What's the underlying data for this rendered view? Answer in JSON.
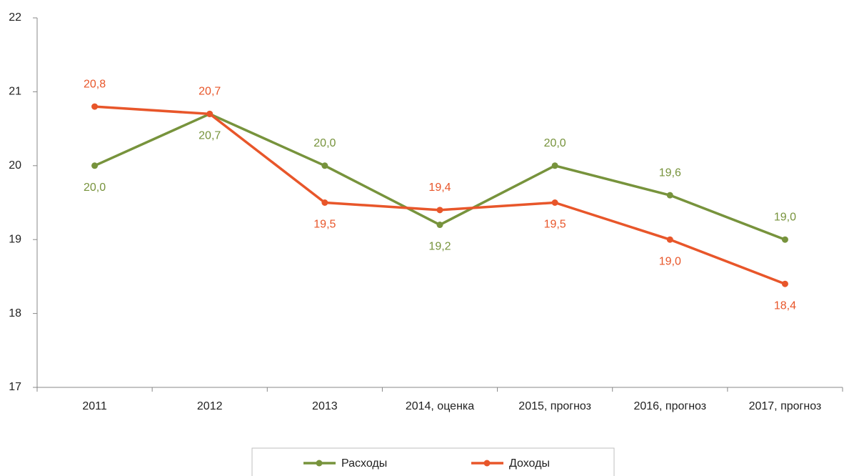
{
  "chart_data": {
    "type": "line",
    "categories": [
      "2011",
      "2012",
      "2013",
      "2014, оценка",
      "2015, прогноз",
      "2016, прогноз",
      "2017, прогноз"
    ],
    "series": [
      {
        "name": "Расходы",
        "color": "#77933c",
        "values": [
          20.0,
          20.7,
          20.0,
          19.2,
          20.0,
          19.6,
          19.0
        ],
        "value_labels": [
          "20,0",
          "20,7",
          "20,0",
          "19,2",
          "20,0",
          "19,6",
          "19,0"
        ]
      },
      {
        "name": "Доходы",
        "color": "#e8562a",
        "values": [
          20.8,
          20.7,
          19.5,
          19.4,
          19.5,
          19.0,
          18.4
        ],
        "value_labels": [
          "20,8",
          "20,7",
          "19,5",
          "19,4",
          "19,5",
          "19,0",
          "18,4"
        ]
      }
    ],
    "ylim": [
      17,
      22
    ],
    "yticks": [
      17,
      18,
      19,
      20,
      21,
      22
    ],
    "grid": false,
    "legend": "bottom"
  }
}
